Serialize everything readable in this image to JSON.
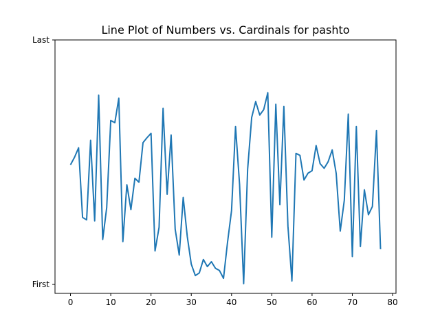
{
  "chart_data": {
    "type": "line",
    "title": "Line Plot of Numbers vs. Cardinals for pashto",
    "xlabel": "",
    "ylabel": "",
    "xlim": [
      -3.85,
      80.85
    ],
    "ylim": [
      0,
      1
    ],
    "x_ticks": [
      0,
      10,
      20,
      30,
      40,
      50,
      60,
      70,
      80
    ],
    "y_ticks": [
      {
        "value": 1,
        "label": "Last"
      },
      {
        "value": 0,
        "label": "First"
      }
    ],
    "grid": false,
    "line_color": "#1f77b4",
    "series": [
      {
        "x": [
          0,
          1,
          2,
          3,
          4,
          5,
          6,
          7,
          8,
          9,
          10,
          11,
          12,
          13,
          14,
          15,
          16,
          17,
          18,
          19,
          20,
          21,
          22,
          23,
          24,
          25,
          26,
          27,
          28,
          29,
          30,
          31,
          32,
          33,
          34,
          35,
          36,
          37,
          38,
          39,
          40,
          41,
          42,
          43,
          44,
          45,
          46,
          47,
          48,
          49,
          50,
          51,
          52,
          53,
          54,
          55,
          56,
          57,
          58,
          59,
          60,
          61,
          62,
          63,
          64,
          65,
          66,
          67,
          68,
          69,
          70,
          71,
          72,
          73,
          74,
          75,
          76,
          77
        ],
        "y": [
          0.489,
          0.52,
          0.559,
          0.274,
          0.264,
          0.59,
          0.26,
          0.774,
          0.184,
          0.314,
          0.671,
          0.661,
          0.762,
          0.175,
          0.408,
          0.306,
          0.434,
          0.418,
          0.58,
          0.6,
          0.618,
          0.137,
          0.234,
          0.72,
          0.369,
          0.611,
          0.226,
          0.12,
          0.356,
          0.196,
          0.083,
          0.036,
          0.047,
          0.102,
          0.073,
          0.093,
          0.066,
          0.057,
          0.025,
          0.171,
          0.302,
          0.646,
          0.408,
          0.003,
          0.471,
          0.683,
          0.748,
          0.693,
          0.715,
          0.784,
          0.193,
          0.737,
          0.326,
          0.728,
          0.239,
          0.014,
          0.536,
          0.528,
          0.427,
          0.455,
          0.465,
          0.568,
          0.494,
          0.475,
          0.502,
          0.55,
          0.454,
          0.218,
          0.344,
          0.697,
          0.114,
          0.646,
          0.155,
          0.387,
          0.285,
          0.319,
          0.629,
          0.144
        ]
      }
    ]
  }
}
